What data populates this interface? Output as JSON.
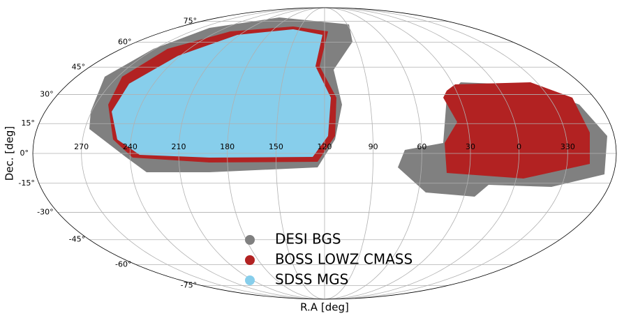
{
  "chart_data": {
    "type": "skymap",
    "xlabel": "R.A [deg]",
    "ylabel": "Dec. [deg]",
    "xlim": [
      300,
      -60
    ],
    "ylim": [
      -90,
      90
    ],
    "xticks": [
      270,
      240,
      210,
      180,
      150,
      120,
      90,
      60,
      30,
      0,
      330
    ],
    "yticks": [
      {
        "value": 75,
        "label": "75°"
      },
      {
        "value": 60,
        "label": "60°"
      },
      {
        "value": 45,
        "label": "45°"
      },
      {
        "value": 30,
        "label": "30°"
      },
      {
        "value": 15,
        "label": "15°"
      },
      {
        "value": 0,
        "label": "0°"
      },
      {
        "value": -15,
        "label": "-15°"
      },
      {
        "value": -30,
        "label": "-30°"
      },
      {
        "value": -45,
        "label": "-45°"
      },
      {
        "value": -60,
        "label": "-60°"
      },
      {
        "value": -75,
        "label": "-75°"
      }
    ],
    "grid": true,
    "series": [
      {
        "name": "DESI BGS",
        "color": "#808080"
      },
      {
        "name": "BOSS LOWZ CMASS",
        "color": "#b22222"
      },
      {
        "name": "SDSS MGS",
        "color": "#87ceeb"
      }
    ]
  }
}
